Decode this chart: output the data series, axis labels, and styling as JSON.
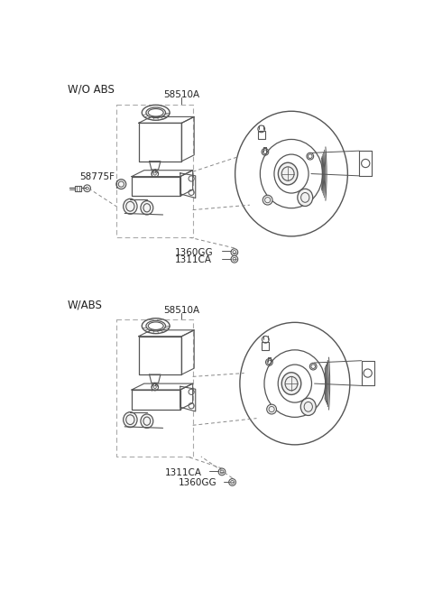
{
  "bg_color": "#ffffff",
  "line_color": "#555555",
  "text_color": "#222222",
  "section1_label": "W/O ABS",
  "section2_label": "W/ABS",
  "part_58510A": "58510A",
  "part_58775F": "58775F",
  "part_1360GG": "1360GG",
  "part_1311CA": "1311CA",
  "figsize": [
    4.8,
    6.55
  ],
  "dpi": 100
}
